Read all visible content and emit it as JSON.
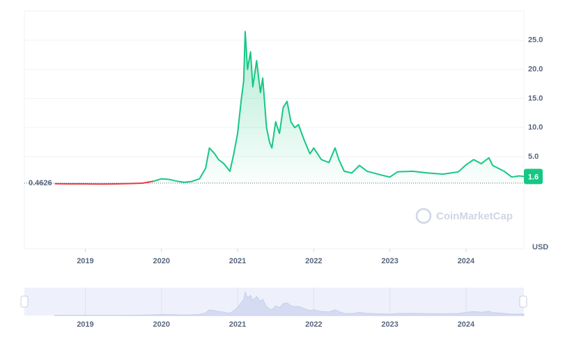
{
  "chart_data": {
    "type": "line",
    "x": [
      2018.6,
      2018.8,
      2019.0,
      2019.2,
      2019.4,
      2019.6,
      2019.75,
      2019.9,
      2020.0,
      2020.1,
      2020.2,
      2020.3,
      2020.4,
      2020.5,
      2020.58,
      2020.63,
      2020.7,
      2020.75,
      2020.82,
      2020.9,
      2020.95,
      2021.0,
      2021.05,
      2021.08,
      2021.1,
      2021.13,
      2021.17,
      2021.2,
      2021.25,
      2021.3,
      2021.33,
      2021.38,
      2021.42,
      2021.45,
      2021.5,
      2021.55,
      2021.6,
      2021.65,
      2021.7,
      2021.75,
      2021.8,
      2021.87,
      2021.95,
      2022.0,
      2022.1,
      2022.2,
      2022.28,
      2022.33,
      2022.4,
      2022.5,
      2022.6,
      2022.7,
      2022.9,
      2023.0,
      2023.1,
      2023.3,
      2023.5,
      2023.7,
      2023.9,
      2024.0,
      2024.1,
      2024.2,
      2024.3,
      2024.35,
      2024.5,
      2024.6,
      2024.7,
      2024.76
    ],
    "values": [
      0.35,
      0.33,
      0.32,
      0.3,
      0.33,
      0.38,
      0.45,
      0.8,
      1.2,
      1.1,
      0.8,
      0.6,
      0.75,
      1.2,
      3.0,
      6.5,
      5.5,
      4.5,
      3.8,
      2.5,
      5.5,
      9.0,
      15,
      18,
      26.5,
      20,
      23,
      17,
      21.5,
      16,
      18.5,
      10,
      7.5,
      6.5,
      11,
      9,
      13.5,
      14.5,
      11,
      10,
      10.5,
      8,
      5.5,
      6.5,
      4.5,
      4.0,
      6.5,
      4.5,
      2.5,
      2.2,
      3.5,
      2.5,
      1.8,
      1.5,
      2.4,
      2.5,
      2.2,
      2.0,
      2.4,
      3.6,
      4.5,
      3.8,
      4.8,
      3.5,
      2.5,
      1.5,
      1.7,
      1.6
    ],
    "color_above": "#16c784",
    "color_below": "#ea3943",
    "baseline": 0.4626,
    "current_price": 1.6,
    "currency": "USD",
    "watermark": "CoinMarketCap",
    "xlim": [
      2018.2,
      2024.76
    ],
    "xticks": [
      2019,
      2020,
      2021,
      2022,
      2023,
      2024
    ],
    "ylim": [
      -10.8,
      30
    ],
    "yticks": [
      {
        "value": 5,
        "label": "5.0"
      },
      {
        "value": 10,
        "label": "10.0"
      },
      {
        "value": 15,
        "label": "15.0"
      },
      {
        "value": 20,
        "label": "20.0"
      },
      {
        "value": 25,
        "label": "25.0"
      }
    ],
    "grid": true
  }
}
